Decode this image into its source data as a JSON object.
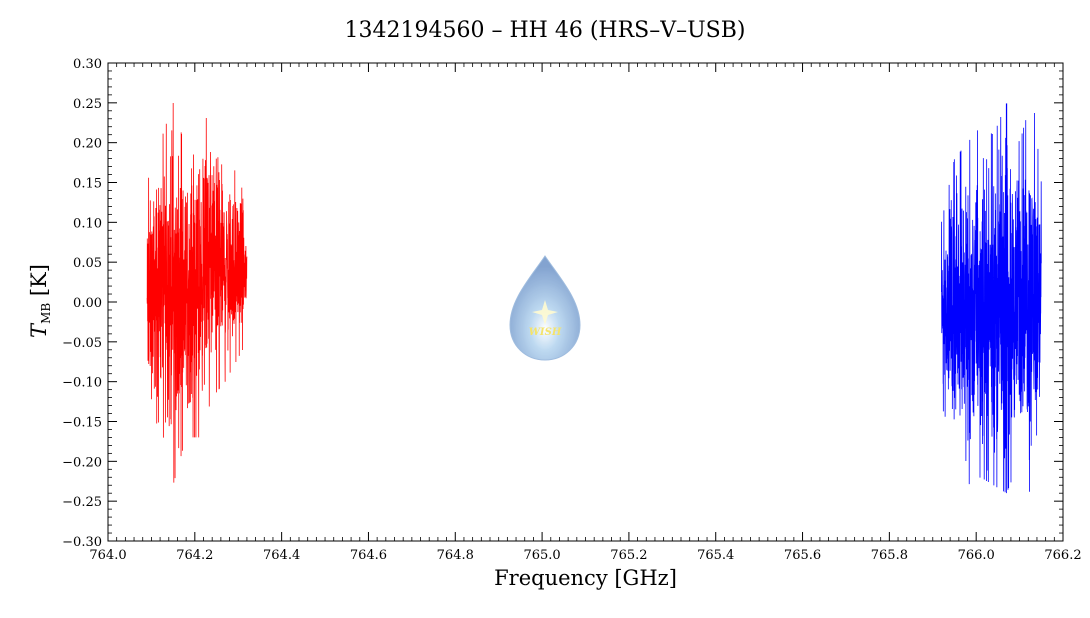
{
  "chart_data": {
    "type": "line",
    "title": "1342194560 – HH 46 (HRS–V–USB)",
    "xlabel": "Frequency [GHz]",
    "ylabel_symbol": "T",
    "ylabel_sub": "MB",
    "ylabel_unit": "[K]",
    "xlim": [
      764.0,
      766.2
    ],
    "ylim": [
      -0.3,
      0.3
    ],
    "xticks": [
      "764.0",
      "764.2",
      "764.4",
      "764.6",
      "764.8",
      "765.0",
      "765.2",
      "765.4",
      "765.6",
      "765.8",
      "766.0",
      "766.2"
    ],
    "yticks": [
      "0.30",
      "0.25",
      "0.20",
      "0.15",
      "0.10",
      "0.05",
      "0.00",
      "−0.05",
      "−0.10",
      "−0.15",
      "−0.20",
      "−0.25",
      "−0.30"
    ],
    "grid": false,
    "series": [
      {
        "color": "#ff0000",
        "x_range": [
          764.09,
          764.32
        ],
        "envelope": {
          "x": [
            764.09,
            764.12,
            764.15,
            764.18,
            764.21,
            764.24,
            764.27,
            764.3,
            764.32
          ],
          "upper": [
            0.15,
            0.2,
            0.25,
            0.19,
            0.22,
            0.24,
            0.18,
            0.16,
            0.12
          ],
          "lower": [
            -0.16,
            -0.15,
            -0.23,
            -0.17,
            -0.17,
            -0.12,
            -0.1,
            -0.07,
            -0.05
          ]
        }
      },
      {
        "color": "#0000ff",
        "x_range": [
          765.92,
          766.15
        ],
        "envelope": {
          "x": [
            765.92,
            765.95,
            765.98,
            766.01,
            766.04,
            766.07,
            766.1,
            766.13,
            766.15
          ],
          "upper": [
            0.1,
            0.18,
            0.2,
            0.22,
            0.21,
            0.25,
            0.2,
            0.26,
            0.15
          ],
          "lower": [
            -0.13,
            -0.18,
            -0.23,
            -0.22,
            -0.23,
            -0.24,
            -0.2,
            -0.25,
            -0.16
          ]
        }
      }
    ],
    "watermark": "WISH"
  }
}
